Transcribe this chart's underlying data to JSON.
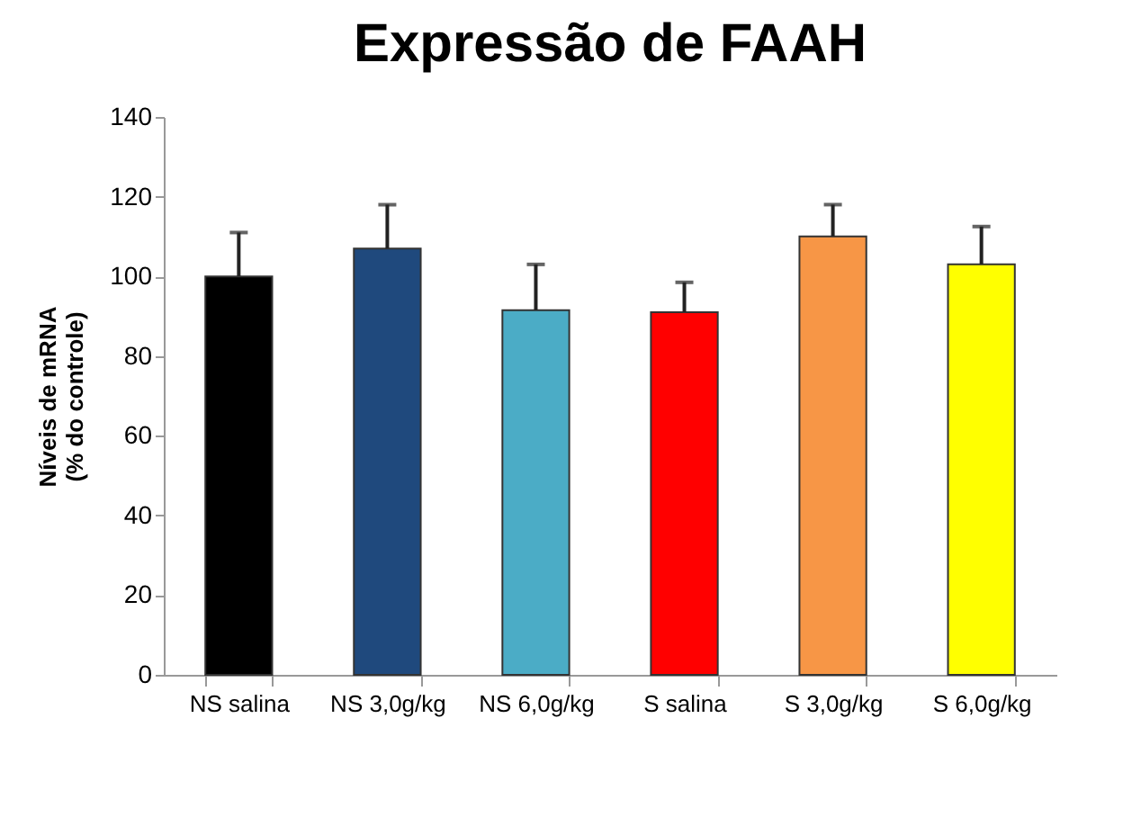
{
  "chart_data": {
    "type": "bar",
    "title": "Expressão de FAAH",
    "ylabel": "Níveis de mRNA\n(% do controle)",
    "categories": [
      "NS salina",
      "NS 3,0g/kg",
      "NS 6,0g/kg",
      "S salina",
      "S 3,0g/kg",
      "S 6,0g/kg"
    ],
    "values": [
      100,
      107,
      91.5,
      91,
      110,
      103
    ],
    "colors": [
      "#000000",
      "#1f497d",
      "#4bacc6",
      "#ff0000",
      "#f79646",
      "#ffff00"
    ],
    "errors": [
      [
        100,
        111
      ],
      [
        107,
        118
      ],
      [
        91.5,
        103
      ],
      [
        91,
        98.5
      ],
      [
        110,
        118
      ],
      [
        103,
        112.5
      ]
    ],
    "ylim": [
      0,
      140
    ],
    "yticks": [
      0,
      20,
      40,
      60,
      80,
      100,
      120,
      140
    ],
    "grid": false
  }
}
